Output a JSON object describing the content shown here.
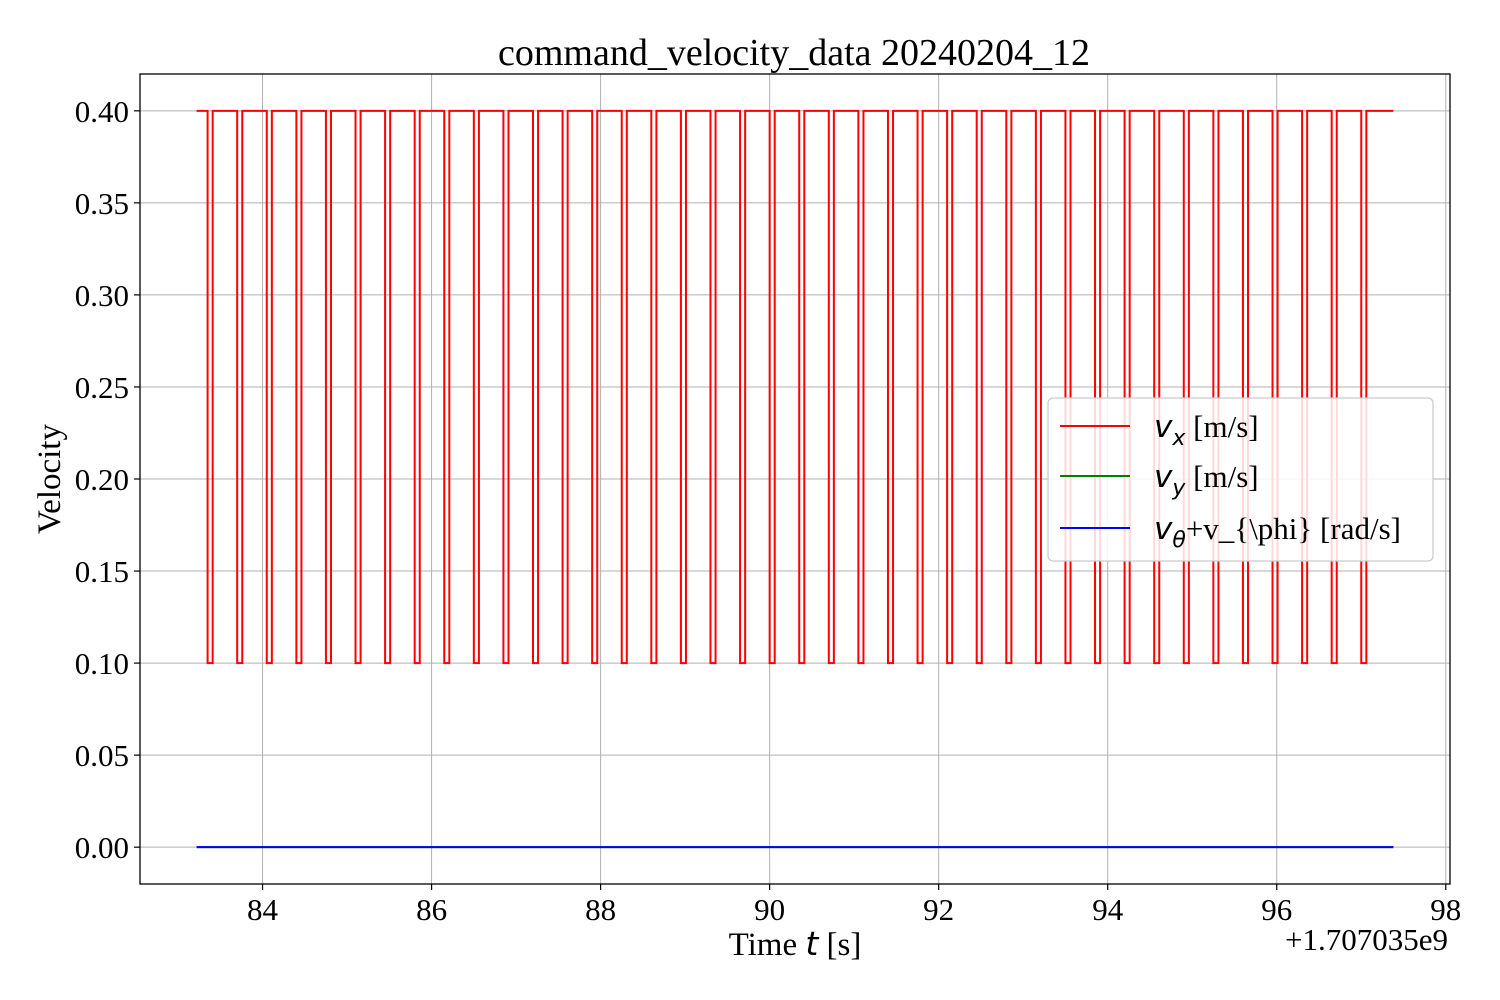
{
  "chart_data": {
    "type": "line",
    "title": "command_velocity_data 20240204_12",
    "xlabel": {
      "prefix": "Time ",
      "symbol": "t",
      "suffix": " [s]"
    },
    "ylabel": "Velocity",
    "x_offset_label": "+1.707035e9",
    "xlim": [
      82.55,
      98.05
    ],
    "ylim": [
      -0.02,
      0.42
    ],
    "xticks": [
      "84",
      "86",
      "88",
      "90",
      "92",
      "94",
      "96",
      "98"
    ],
    "xtick_values": [
      84,
      86,
      88,
      90,
      92,
      94,
      96,
      98
    ],
    "yticks": [
      "0.00",
      "0.05",
      "0.10",
      "0.15",
      "0.20",
      "0.25",
      "0.30",
      "0.35",
      "0.40"
    ],
    "ytick_values": [
      0.0,
      0.05,
      0.1,
      0.15,
      0.2,
      0.25,
      0.3,
      0.35,
      0.4
    ],
    "grid": true,
    "legend_position": "center-right",
    "series": [
      {
        "name": {
          "symbol": "v",
          "sub": "x",
          "rest": " [m/s]"
        },
        "color": "#ff0000",
        "pattern": "square wave",
        "high": 0.4,
        "low": 0.1,
        "x_start": 83.22,
        "x_end": 97.38,
        "dip_starts": [
          83.35,
          83.7,
          84.05,
          84.4,
          84.75,
          85.1,
          85.45,
          85.8,
          86.15,
          86.5,
          86.85,
          87.2,
          87.55,
          87.9,
          88.25,
          88.6,
          88.95,
          89.3,
          89.65,
          90.0,
          90.35,
          90.7,
          91.05,
          91.4,
          91.75,
          92.1,
          92.45,
          92.8,
          93.15,
          93.5,
          93.85,
          94.2,
          94.55,
          94.9,
          95.25,
          95.6,
          95.95,
          96.3,
          96.65,
          97.0
        ],
        "dip_width": 0.06
      },
      {
        "name": {
          "symbol": "v",
          "sub": "y",
          "rest": " [m/s]"
        },
        "color": "#008000",
        "x": [
          83.22,
          97.38
        ],
        "values": [
          0.0,
          0.0
        ]
      },
      {
        "name": {
          "symbol": "v",
          "sub": "θ",
          "rest": "+v_{\\phi} [rad/s]"
        },
        "color": "#0000ff",
        "x": [
          83.22,
          97.38
        ],
        "values": [
          0.0,
          0.0
        ]
      }
    ]
  }
}
